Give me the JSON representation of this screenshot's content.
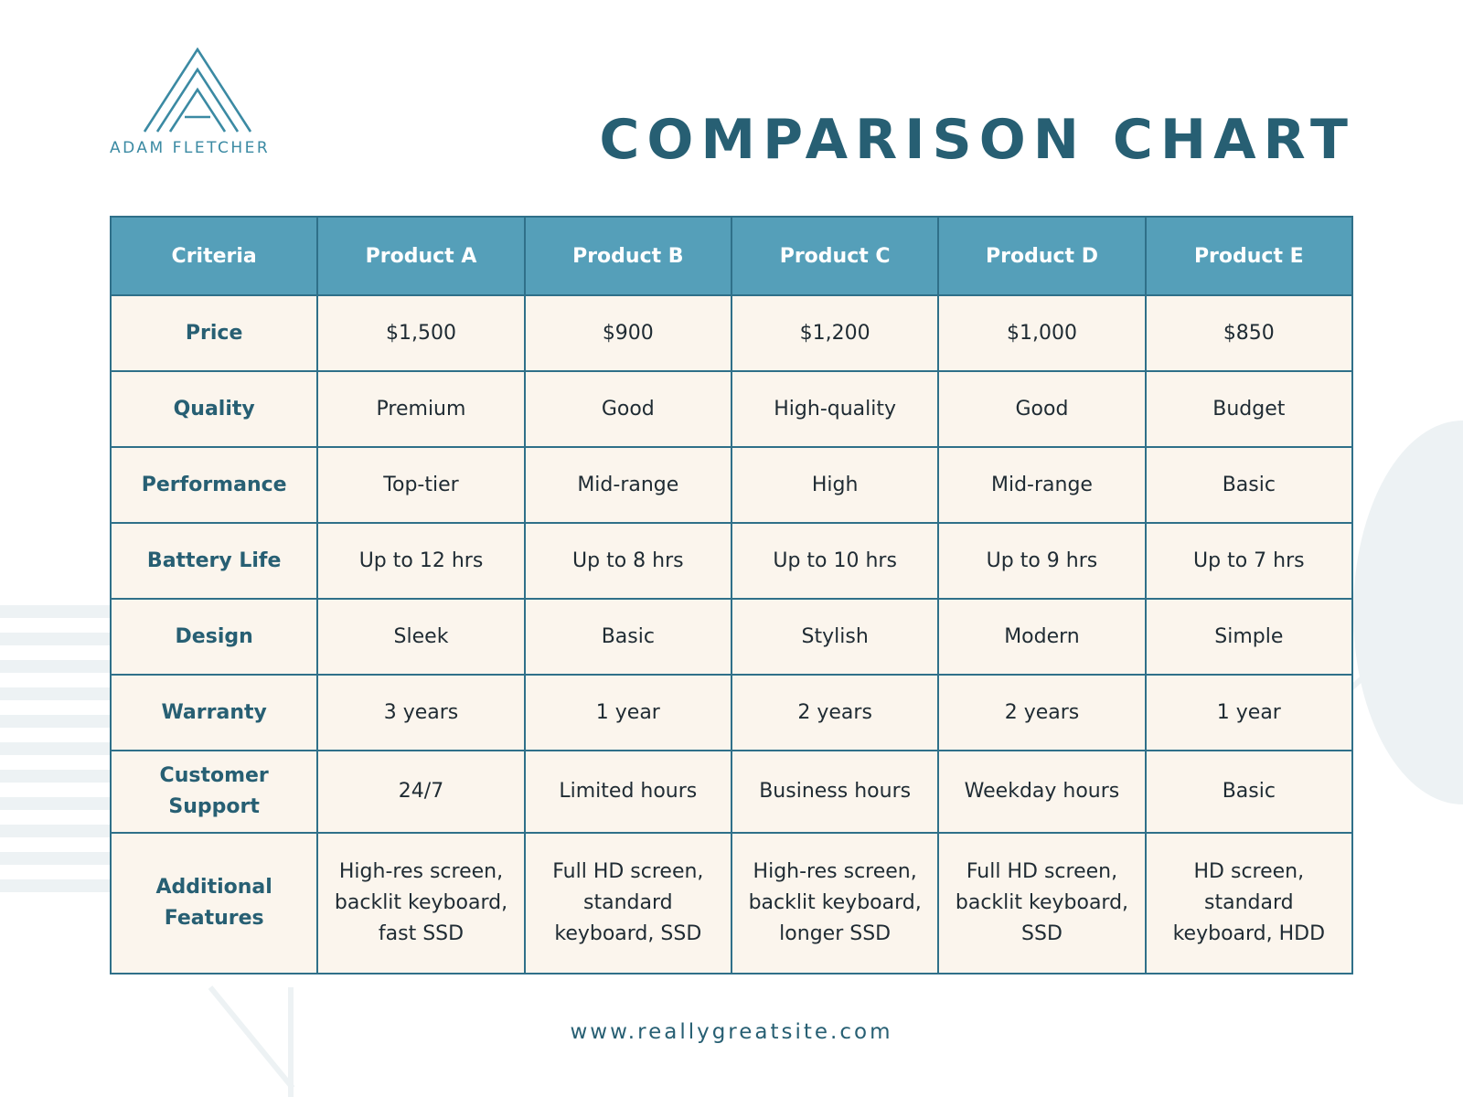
{
  "brand": {
    "logo_icon": "triangle-lines-icon",
    "name": "ADAM FLETCHER"
  },
  "title": "COMPARISON CHART",
  "table": {
    "columns": [
      "Criteria",
      "Product A",
      "Product B",
      "Product C",
      "Product D",
      "Product E"
    ],
    "rows": [
      {
        "criterion": "Price",
        "values": [
          "$1,500",
          "$900",
          "$1,200",
          "$1,000",
          "$850"
        ]
      },
      {
        "criterion": "Quality",
        "values": [
          "Premium",
          "Good",
          "High-quality",
          "Good",
          "Budget"
        ]
      },
      {
        "criterion": "Performance",
        "values": [
          "Top-tier",
          "Mid-range",
          "High",
          "Mid-range",
          "Basic"
        ]
      },
      {
        "criterion": "Battery Life",
        "values": [
          "Up to 12 hrs",
          "Up to 8 hrs",
          "Up to 10 hrs",
          "Up to 9 hrs",
          "Up to 7 hrs"
        ]
      },
      {
        "criterion": "Design",
        "values": [
          "Sleek",
          "Basic",
          "Stylish",
          "Modern",
          "Simple"
        ]
      },
      {
        "criterion": "Warranty",
        "values": [
          "3 years",
          "1 year",
          "2 years",
          "2 years",
          "1 year"
        ]
      },
      {
        "criterion": "Customer Support",
        "values": [
          "24/7",
          "Limited hours",
          "Business hours",
          "Weekday hours",
          "Basic"
        ]
      },
      {
        "criterion": "Additional Features",
        "values": [
          "High-res screen, backlit keyboard, fast SSD",
          "Full HD screen, standard keyboard, SSD",
          "High-res screen, backlit keyboard, longer SSD",
          "Full HD screen, backlit keyboard, SSD",
          "HD screen, standard keyboard, HDD"
        ]
      }
    ]
  },
  "footer": {
    "website": "www.reallygreatsite.com"
  },
  "colors": {
    "title": "#275f73",
    "header_bg": "#559fb9",
    "cell_bg": "#fbf5ed",
    "border": "#2f7089",
    "logo": "#3b8aa3",
    "decoration": "#e9eff1"
  }
}
